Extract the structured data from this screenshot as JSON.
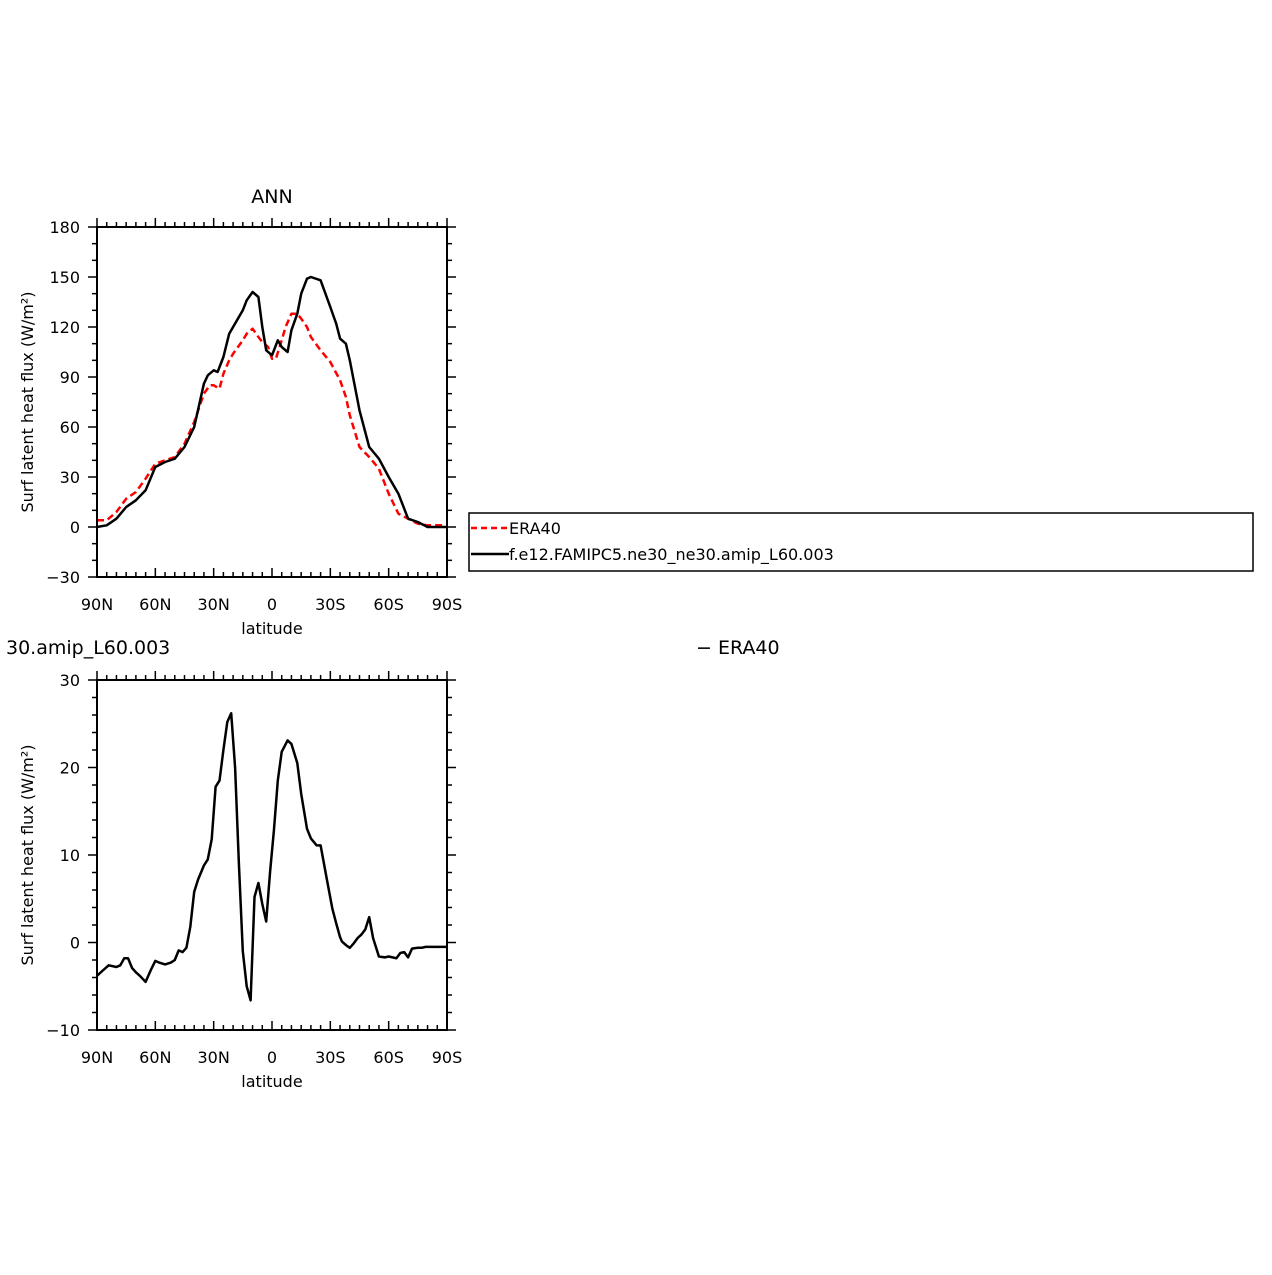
{
  "chart_data": [
    {
      "type": "line",
      "title": "ANN",
      "xlabel": "latitude",
      "ylabel": "Surf latent heat flux (W/m²)",
      "xlim": [
        90,
        -90
      ],
      "ylim": [
        -30,
        180
      ],
      "xticks": [
        90,
        60,
        30,
        0,
        -30,
        -60,
        -90
      ],
      "xtick_labels": [
        "90N",
        "60N",
        "30N",
        "0",
        "30S",
        "60S",
        "90S"
      ],
      "yticks": [
        -30,
        0,
        30,
        60,
        90,
        120,
        150,
        180
      ],
      "ytick_labels": [
        "−30",
        "0",
        "30",
        "60",
        "90",
        "120",
        "150",
        "180"
      ],
      "legend_position": "right",
      "series": [
        {
          "name": "ERA40",
          "color": "#ff0000",
          "dash": "dashed",
          "x": [
            90,
            85,
            80,
            75,
            70,
            65,
            60,
            55,
            50,
            45,
            40,
            35,
            32,
            30,
            27,
            25,
            22,
            20,
            15,
            13,
            10,
            7,
            5,
            2,
            0,
            -2,
            -5,
            -7,
            -10,
            -13,
            -15,
            -18,
            -20,
            -25,
            -30,
            -35,
            -38,
            -40,
            -45,
            -50,
            -55,
            -60,
            -65,
            -70,
            -75,
            -80,
            -85,
            -90
          ],
          "y": [
            4,
            4,
            9,
            17,
            21,
            29,
            38,
            40,
            42,
            50,
            63,
            80,
            85,
            85,
            83,
            92,
            100,
            104,
            112,
            116,
            119,
            114,
            111,
            108,
            101,
            101,
            112,
            120,
            128,
            128,
            125,
            120,
            114,
            106,
            99,
            88,
            78,
            67,
            48,
            42,
            35,
            20,
            8,
            5,
            2,
            1,
            1,
            1
          ]
        },
        {
          "name": "f.e12.FAMIPC5.ne30_ne30.amip_L60.003",
          "color": "#000000",
          "dash": "solid",
          "x": [
            90,
            85,
            80,
            75,
            70,
            65,
            60,
            55,
            50,
            45,
            40,
            35,
            33,
            30,
            28,
            25,
            22,
            20,
            15,
            13,
            10,
            7,
            5,
            3,
            0,
            -3,
            -5,
            -8,
            -10,
            -13,
            -15,
            -18,
            -20,
            -25,
            -30,
            -33,
            -35,
            -38,
            -40,
            -45,
            -50,
            -55,
            -60,
            -65,
            -70,
            -75,
            -80,
            -85,
            -90
          ],
          "y": [
            0,
            1,
            5,
            12,
            16,
            22,
            36,
            39,
            41,
            48,
            60,
            86,
            91,
            94,
            93,
            102,
            116,
            120,
            130,
            136,
            141,
            138,
            120,
            106,
            103,
            112,
            108,
            105,
            118,
            128,
            140,
            149,
            150,
            148,
            132,
            122,
            113,
            110,
            100,
            70,
            48,
            41,
            30,
            20,
            5,
            3,
            0,
            0,
            0
          ]
        }
      ]
    },
    {
      "type": "line",
      "title": "30.amip_L60.003",
      "title_right": "− ERA40",
      "xlabel": "latitude",
      "ylabel": "Surf latent heat flux (W/m²)",
      "xlim": [
        90,
        -90
      ],
      "ylim": [
        -10,
        30
      ],
      "xticks": [
        90,
        60,
        30,
        0,
        -30,
        -60,
        -90
      ],
      "xtick_labels": [
        "90N",
        "60N",
        "30N",
        "0",
        "30S",
        "60S",
        "90S"
      ],
      "yticks": [
        -10,
        0,
        10,
        20,
        30
      ],
      "ytick_labels": [
        "−10",
        "0",
        "10",
        "20",
        "30"
      ],
      "series": [
        {
          "color": "#000000",
          "dash": "solid",
          "x": [
            90,
            87,
            84,
            80,
            78,
            76,
            74,
            72,
            70,
            68,
            65,
            62,
            60,
            58,
            55,
            52,
            50,
            48,
            46,
            44,
            42,
            40,
            38,
            35,
            33,
            31,
            29,
            27,
            25,
            23,
            21,
            19,
            17,
            15,
            13,
            11,
            9,
            7,
            5,
            3,
            1,
            -1,
            -3,
            -5,
            -8,
            -10,
            -13,
            -15,
            -18,
            -20,
            -23,
            -25,
            -28,
            -31,
            -33,
            -35,
            -36,
            -38,
            -40,
            -42,
            -44,
            -46,
            -48,
            -50,
            -52,
            -55,
            -58,
            -60,
            -62,
            -64,
            -66,
            -68,
            -70,
            -72,
            -75,
            -77,
            -79,
            -80,
            -82,
            -84,
            -86,
            -88,
            -90
          ],
          "y": [
            -3.8,
            -3.2,
            -2.6,
            -2.8,
            -2.6,
            -1.8,
            -1.8,
            -2.9,
            -3.4,
            -3.8,
            -4.5,
            -3.0,
            -2.1,
            -2.3,
            -2.5,
            -2.3,
            -2.0,
            -0.9,
            -1.1,
            -0.6,
            1.8,
            5.8,
            7.2,
            8.8,
            9.5,
            11.8,
            17.8,
            18.5,
            22.0,
            25.2,
            26.2,
            20.0,
            9.0,
            -1.0,
            -5.0,
            -6.6,
            5.2,
            6.8,
            4.4,
            2.4,
            8.1,
            12.8,
            18.5,
            21.8,
            23.1,
            22.7,
            20.5,
            17.0,
            13.0,
            11.9,
            11.1,
            11.1,
            7.5,
            3.9,
            2.2,
            0.6,
            0.1,
            -0.3,
            -0.6,
            -0.1,
            0.5,
            0.9,
            1.5,
            2.9,
            0.5,
            -1.6,
            -1.7,
            -1.6,
            -1.7,
            -1.8,
            -1.2,
            -1.1,
            -1.7,
            -0.7,
            -0.6,
            -0.6,
            -0.5,
            -0.5,
            -0.5,
            -0.5,
            -0.5,
            -0.5,
            -0.5
          ]
        }
      ]
    }
  ]
}
